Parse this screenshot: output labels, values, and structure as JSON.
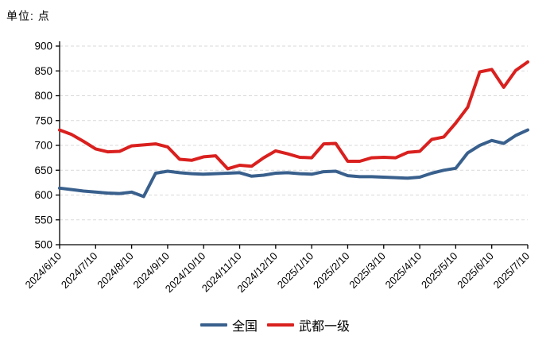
{
  "header": {
    "unit_label": "单位: 点"
  },
  "chart_data": {
    "type": "line",
    "title": "",
    "y_unit": "点",
    "ylim": [
      500,
      900
    ],
    "ytick_step": 50,
    "yticks": [
      500,
      550,
      600,
      650,
      700,
      750,
      800,
      850,
      900
    ],
    "grid": "horizontal-dashed",
    "legend_position": "bottom-center",
    "x_tick_labels": [
      "2024/6/10",
      "2024/7/10",
      "2024/8/10",
      "2024/9/10",
      "2024/10/10",
      "2024/11/10",
      "2024/12/10",
      "2025/1/10",
      "2025/2/10",
      "2025/3/10",
      "2025/4/10",
      "2025/5/10",
      "2025/6/10",
      "2025/7/10"
    ],
    "points_per_tick": 3,
    "series": [
      {
        "name": "全国",
        "color": "#39608d",
        "values": [
          614,
          611,
          608,
          606,
          604,
          603,
          606,
          597,
          644,
          648,
          645,
          643,
          642,
          643,
          644,
          645,
          638,
          640,
          644,
          645,
          643,
          642,
          647,
          648,
          639,
          637,
          637,
          636,
          635,
          634,
          636,
          644,
          650,
          654,
          685,
          700,
          710,
          704,
          720,
          731
        ]
      },
      {
        "name": "武都一级",
        "color": "#d9201e",
        "values": [
          731,
          722,
          708,
          693,
          687,
          688,
          699,
          701,
          703,
          697,
          672,
          670,
          677,
          679,
          653,
          660,
          658,
          675,
          689,
          683,
          676,
          675,
          703,
          704,
          668,
          668,
          675,
          676,
          675,
          686,
          688,
          712,
          717,
          745,
          777,
          848,
          853,
          817,
          851,
          868
        ]
      }
    ]
  }
}
